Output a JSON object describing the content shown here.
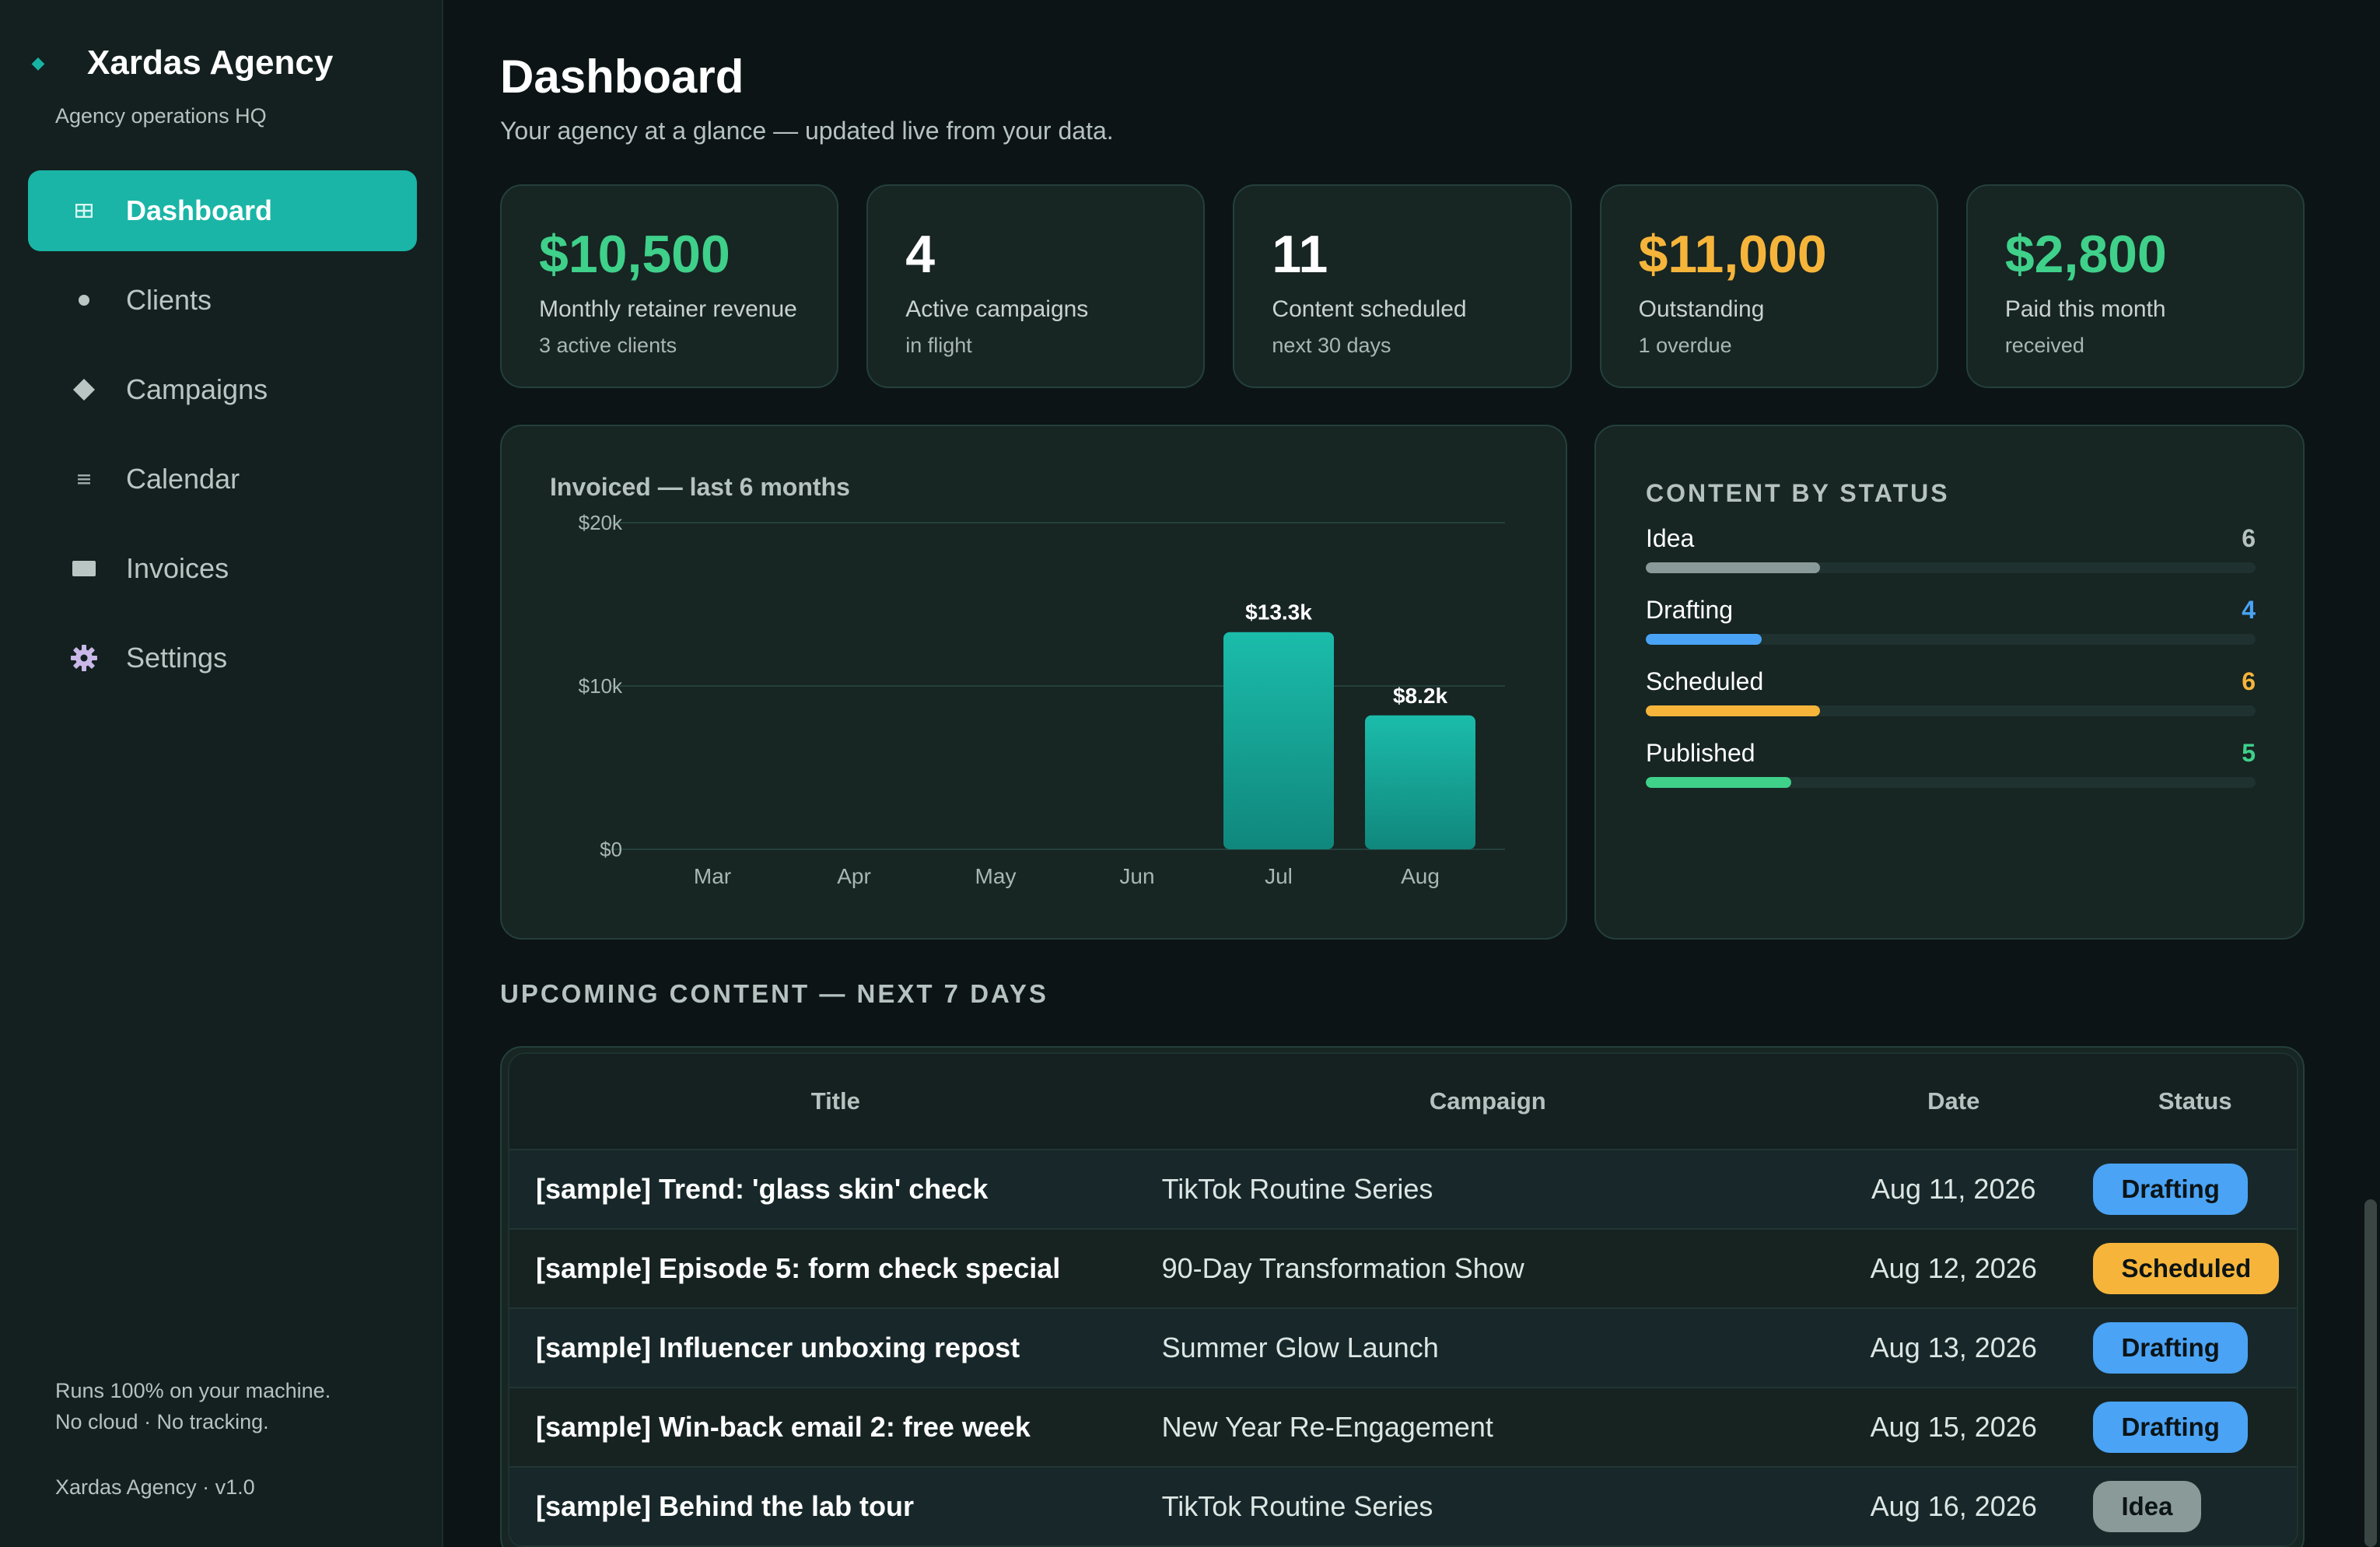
{
  "sidebar": {
    "brand_title": "Xardas Agency",
    "brand_sub": "Agency operations HQ",
    "items": [
      {
        "label": "Dashboard",
        "icon": "dashboard-icon",
        "active": true
      },
      {
        "label": "Clients",
        "icon": "dot-icon"
      },
      {
        "label": "Campaigns",
        "icon": "diamond-icon"
      },
      {
        "label": "Calendar",
        "icon": "calendar-icon"
      },
      {
        "label": "Invoices",
        "icon": "invoice-icon"
      },
      {
        "label": "Settings",
        "icon": "gear-icon"
      }
    ],
    "foot_line1": "Runs 100% on your machine.",
    "foot_line2": "No cloud · No tracking.",
    "version": "Xardas Agency · v1.0"
  },
  "header": {
    "title": "Dashboard",
    "subtitle": "Your agency at a glance — updated live from your data."
  },
  "stats": [
    {
      "value": "$10,500",
      "label": "Monthly retainer revenue",
      "meta": "3 active clients",
      "color": "#3fd08a"
    },
    {
      "value": "4",
      "label": "Active campaigns",
      "meta": "in flight",
      "color": "#ffffff"
    },
    {
      "value": "11",
      "label": "Content scheduled",
      "meta": "next 30 days",
      "color": "#ffffff"
    },
    {
      "value": "$11,000",
      "label": "Outstanding",
      "meta": "1 overdue",
      "color": "#f6b53a"
    },
    {
      "value": "$2,800",
      "label": "Paid this month",
      "meta": "received",
      "color": "#3fd08a"
    }
  ],
  "chart": {
    "title": "Invoiced — last 6 months"
  },
  "chart_data": {
    "type": "bar",
    "categories": [
      "Mar",
      "Apr",
      "May",
      "Jun",
      "Jul",
      "Aug"
    ],
    "values": [
      0,
      0,
      0,
      0,
      13.3,
      8.2
    ],
    "value_labels": [
      "",
      "",
      "",
      "",
      "$13.3k",
      "$8.2k"
    ],
    "ylim": [
      0,
      20
    ],
    "yticks": [
      {
        "value": 0,
        "label": "$0"
      },
      {
        "value": 10,
        "label": "$10k"
      },
      {
        "value": 20,
        "label": "$20k"
      }
    ],
    "title": "Invoiced — last 6 months",
    "bar_color": "#17b3a3",
    "grid": true
  },
  "content_status": {
    "title": "CONTENT BY STATUS",
    "max": 21,
    "rows": [
      {
        "label": "Idea",
        "count": 6,
        "color": "#8a9a98"
      },
      {
        "label": "Drafting",
        "count": 4,
        "color": "#4aa3f5"
      },
      {
        "label": "Scheduled",
        "count": 6,
        "color": "#f6b53a"
      },
      {
        "label": "Published",
        "count": 5,
        "color": "#3fd08a"
      }
    ]
  },
  "upcoming": {
    "section_title": "UPCOMING CONTENT — NEXT 7 DAYS",
    "headers": {
      "title": "Title",
      "campaign": "Campaign",
      "date": "Date",
      "status": "Status"
    },
    "rows": [
      {
        "title": "[sample] Trend: 'glass skin' check",
        "campaign": "TikTok Routine Series",
        "date": "Aug 11, 2026",
        "status": "Drafting",
        "color": "#4aa3f5"
      },
      {
        "title": "[sample] Episode 5: form check special",
        "campaign": "90-Day Transformation Show",
        "date": "Aug 12, 2026",
        "status": "Scheduled",
        "color": "#f6b53a"
      },
      {
        "title": "[sample] Influencer unboxing repost",
        "campaign": "Summer Glow Launch",
        "date": "Aug 13, 2026",
        "status": "Drafting",
        "color": "#4aa3f5"
      },
      {
        "title": "[sample] Win-back email 2: free week",
        "campaign": "New Year Re-Engagement",
        "date": "Aug 15, 2026",
        "status": "Drafting",
        "color": "#4aa3f5"
      },
      {
        "title": "[sample] Behind the lab tour",
        "campaign": "TikTok Routine Series",
        "date": "Aug 16, 2026",
        "status": "Idea",
        "color": "#8a9a98"
      }
    ]
  }
}
